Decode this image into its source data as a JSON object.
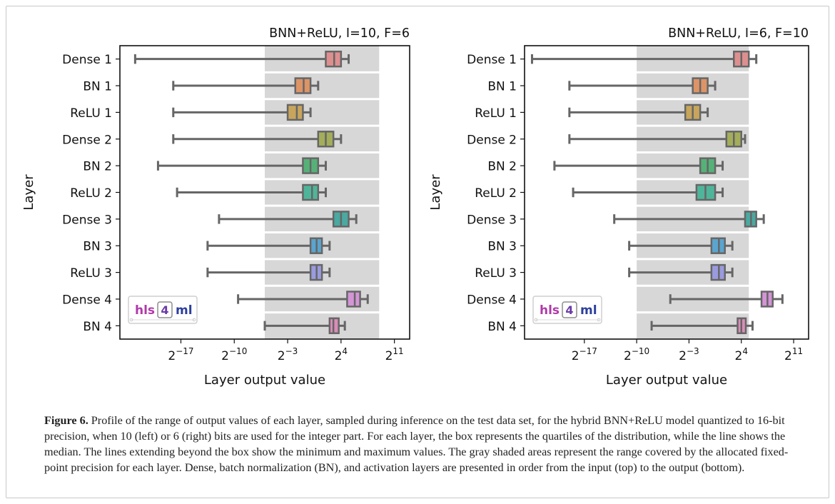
{
  "caption": {
    "label": "Figure 6.",
    "text": "Profile of the range of output values of each layer, sampled during inference on the test data set, for the hybrid BNN+ReLU model quantized to 16-bit precision, when 10 (left) or 6 (right) bits are used for the integer part. For each layer, the box represents the quartiles of the distribution, while the line shows the median. The lines extending beyond the box show the minimum and maximum values. The gray shaded areas represent the range covered by the allocated fixed-point precision for each layer. Dense, batch normalization (BN), and activation layers are presented in order from the input (top) to the output (bottom)."
  },
  "chart_data": [
    {
      "type": "boxplot",
      "title": "BNN+ReLU, I=10, F=6",
      "xlabel": "Layer output value",
      "ylabel": "Layer",
      "xscale": "log2",
      "xlim_log2": [
        -25,
        13
      ],
      "xticks_log2": [
        -17,
        -10,
        -3,
        4,
        11
      ],
      "xtick_labels": [
        "2^-17",
        "2^-10",
        "2^-3",
        "2^4",
        "2^11"
      ],
      "logo": {
        "left": "hls",
        "mid": "4",
        "right": "ml",
        "placement": "bottom-left"
      },
      "categories": [
        "Dense 1",
        "BN 1",
        "ReLU 1",
        "Dense 2",
        "BN 2",
        "ReLU 2",
        "Dense 3",
        "BN 3",
        "ReLU 3",
        "Dense 4",
        "BN 4"
      ],
      "colors": [
        "#dd8f8f",
        "#dd9466",
        "#c8a55c",
        "#a4ad5a",
        "#55b178",
        "#4fb59a",
        "#4aa9a0",
        "#5aa5cf",
        "#9a9bde",
        "#d494d6",
        "#d98db7"
      ],
      "shaded_range_log2": [
        -6,
        9
      ],
      "box_stats_log2": [
        {
          "min": -23,
          "q1": 2.0,
          "median": 3.1,
          "q3": 4.0,
          "max": 5.0
        },
        {
          "min": -18,
          "q1": -2.0,
          "median": -0.9,
          "q3": 0.0,
          "max": 1.0
        },
        {
          "min": -18,
          "q1": -3.0,
          "median": -1.8,
          "q3": -1.0,
          "max": 0.0
        },
        {
          "min": -18,
          "q1": 1.0,
          "median": 2.0,
          "q3": 3.0,
          "max": 4.0
        },
        {
          "min": -20,
          "q1": -1.0,
          "median": 0.0,
          "q3": 1.0,
          "max": 2.0
        },
        {
          "min": -17.5,
          "q1": -1.0,
          "median": 0.2,
          "q3": 1.0,
          "max": 2.0
        },
        {
          "min": -12,
          "q1": 3.0,
          "median": 4.0,
          "q3": 5.0,
          "max": 6.0
        },
        {
          "min": -13.5,
          "q1": 0.0,
          "median": 0.8,
          "q3": 1.5,
          "max": 2.5
        },
        {
          "min": -13.5,
          "q1": 0.0,
          "median": 0.8,
          "q3": 1.5,
          "max": 2.5
        },
        {
          "min": -9.5,
          "q1": 4.8,
          "median": 5.8,
          "q3": 6.5,
          "max": 7.5
        },
        {
          "min": -6,
          "q1": 2.5,
          "median": 3.0,
          "q3": 3.7,
          "max": 4.5
        }
      ]
    },
    {
      "type": "boxplot",
      "title": "BNN+ReLU, I=6, F=10",
      "xlabel": "Layer output value",
      "ylabel": "Layer",
      "xscale": "log2",
      "xlim_log2": [
        -25,
        13
      ],
      "xticks_log2": [
        -17,
        -10,
        -3,
        4,
        11
      ],
      "xtick_labels": [
        "2^-17",
        "2^-10",
        "2^-3",
        "2^4",
        "2^11"
      ],
      "logo": {
        "left": "hls",
        "mid": "4",
        "right": "ml",
        "placement": "bottom-left"
      },
      "categories": [
        "Dense 1",
        "BN 1",
        "ReLU 1",
        "Dense 2",
        "BN 2",
        "ReLU 2",
        "Dense 3",
        "BN 3",
        "ReLU 3",
        "Dense 4",
        "BN 4"
      ],
      "colors": [
        "#dd8f8f",
        "#dd9466",
        "#c8a55c",
        "#a4ad5a",
        "#55b178",
        "#4fb59a",
        "#4aa9a0",
        "#5aa5cf",
        "#9a9bde",
        "#d494d6",
        "#d98db7"
      ],
      "shaded_range_log2": [
        -10,
        5
      ],
      "box_stats_log2": [
        {
          "min": -24,
          "q1": 3.0,
          "median": 4.0,
          "q3": 5.0,
          "max": 6.0
        },
        {
          "min": -19,
          "q1": -2.5,
          "median": -1.5,
          "q3": -0.5,
          "max": 0.5
        },
        {
          "min": -19,
          "q1": -3.5,
          "median": -2.5,
          "q3": -1.5,
          "max": -0.5
        },
        {
          "min": -19,
          "q1": 2.0,
          "median": 3.0,
          "q3": 4.0,
          "max": 4.5
        },
        {
          "min": -21,
          "q1": -1.5,
          "median": -0.5,
          "q3": 0.5,
          "max": 1.5
        },
        {
          "min": -18.5,
          "q1": -2.0,
          "median": -0.8,
          "q3": 0.5,
          "max": 1.5
        },
        {
          "min": -13,
          "q1": 4.5,
          "median": 5.3,
          "q3": 6.0,
          "max": 7.0
        },
        {
          "min": -11,
          "q1": 0.0,
          "median": 1.0,
          "q3": 1.8,
          "max": 2.8
        },
        {
          "min": -11,
          "q1": 0.0,
          "median": 1.0,
          "q3": 1.8,
          "max": 2.8
        },
        {
          "min": -5.5,
          "q1": 6.7,
          "median": 7.5,
          "q3": 8.2,
          "max": 9.5
        },
        {
          "min": -8,
          "q1": 3.5,
          "median": 4.0,
          "q3": 4.6,
          "max": 5.5
        }
      ]
    }
  ]
}
